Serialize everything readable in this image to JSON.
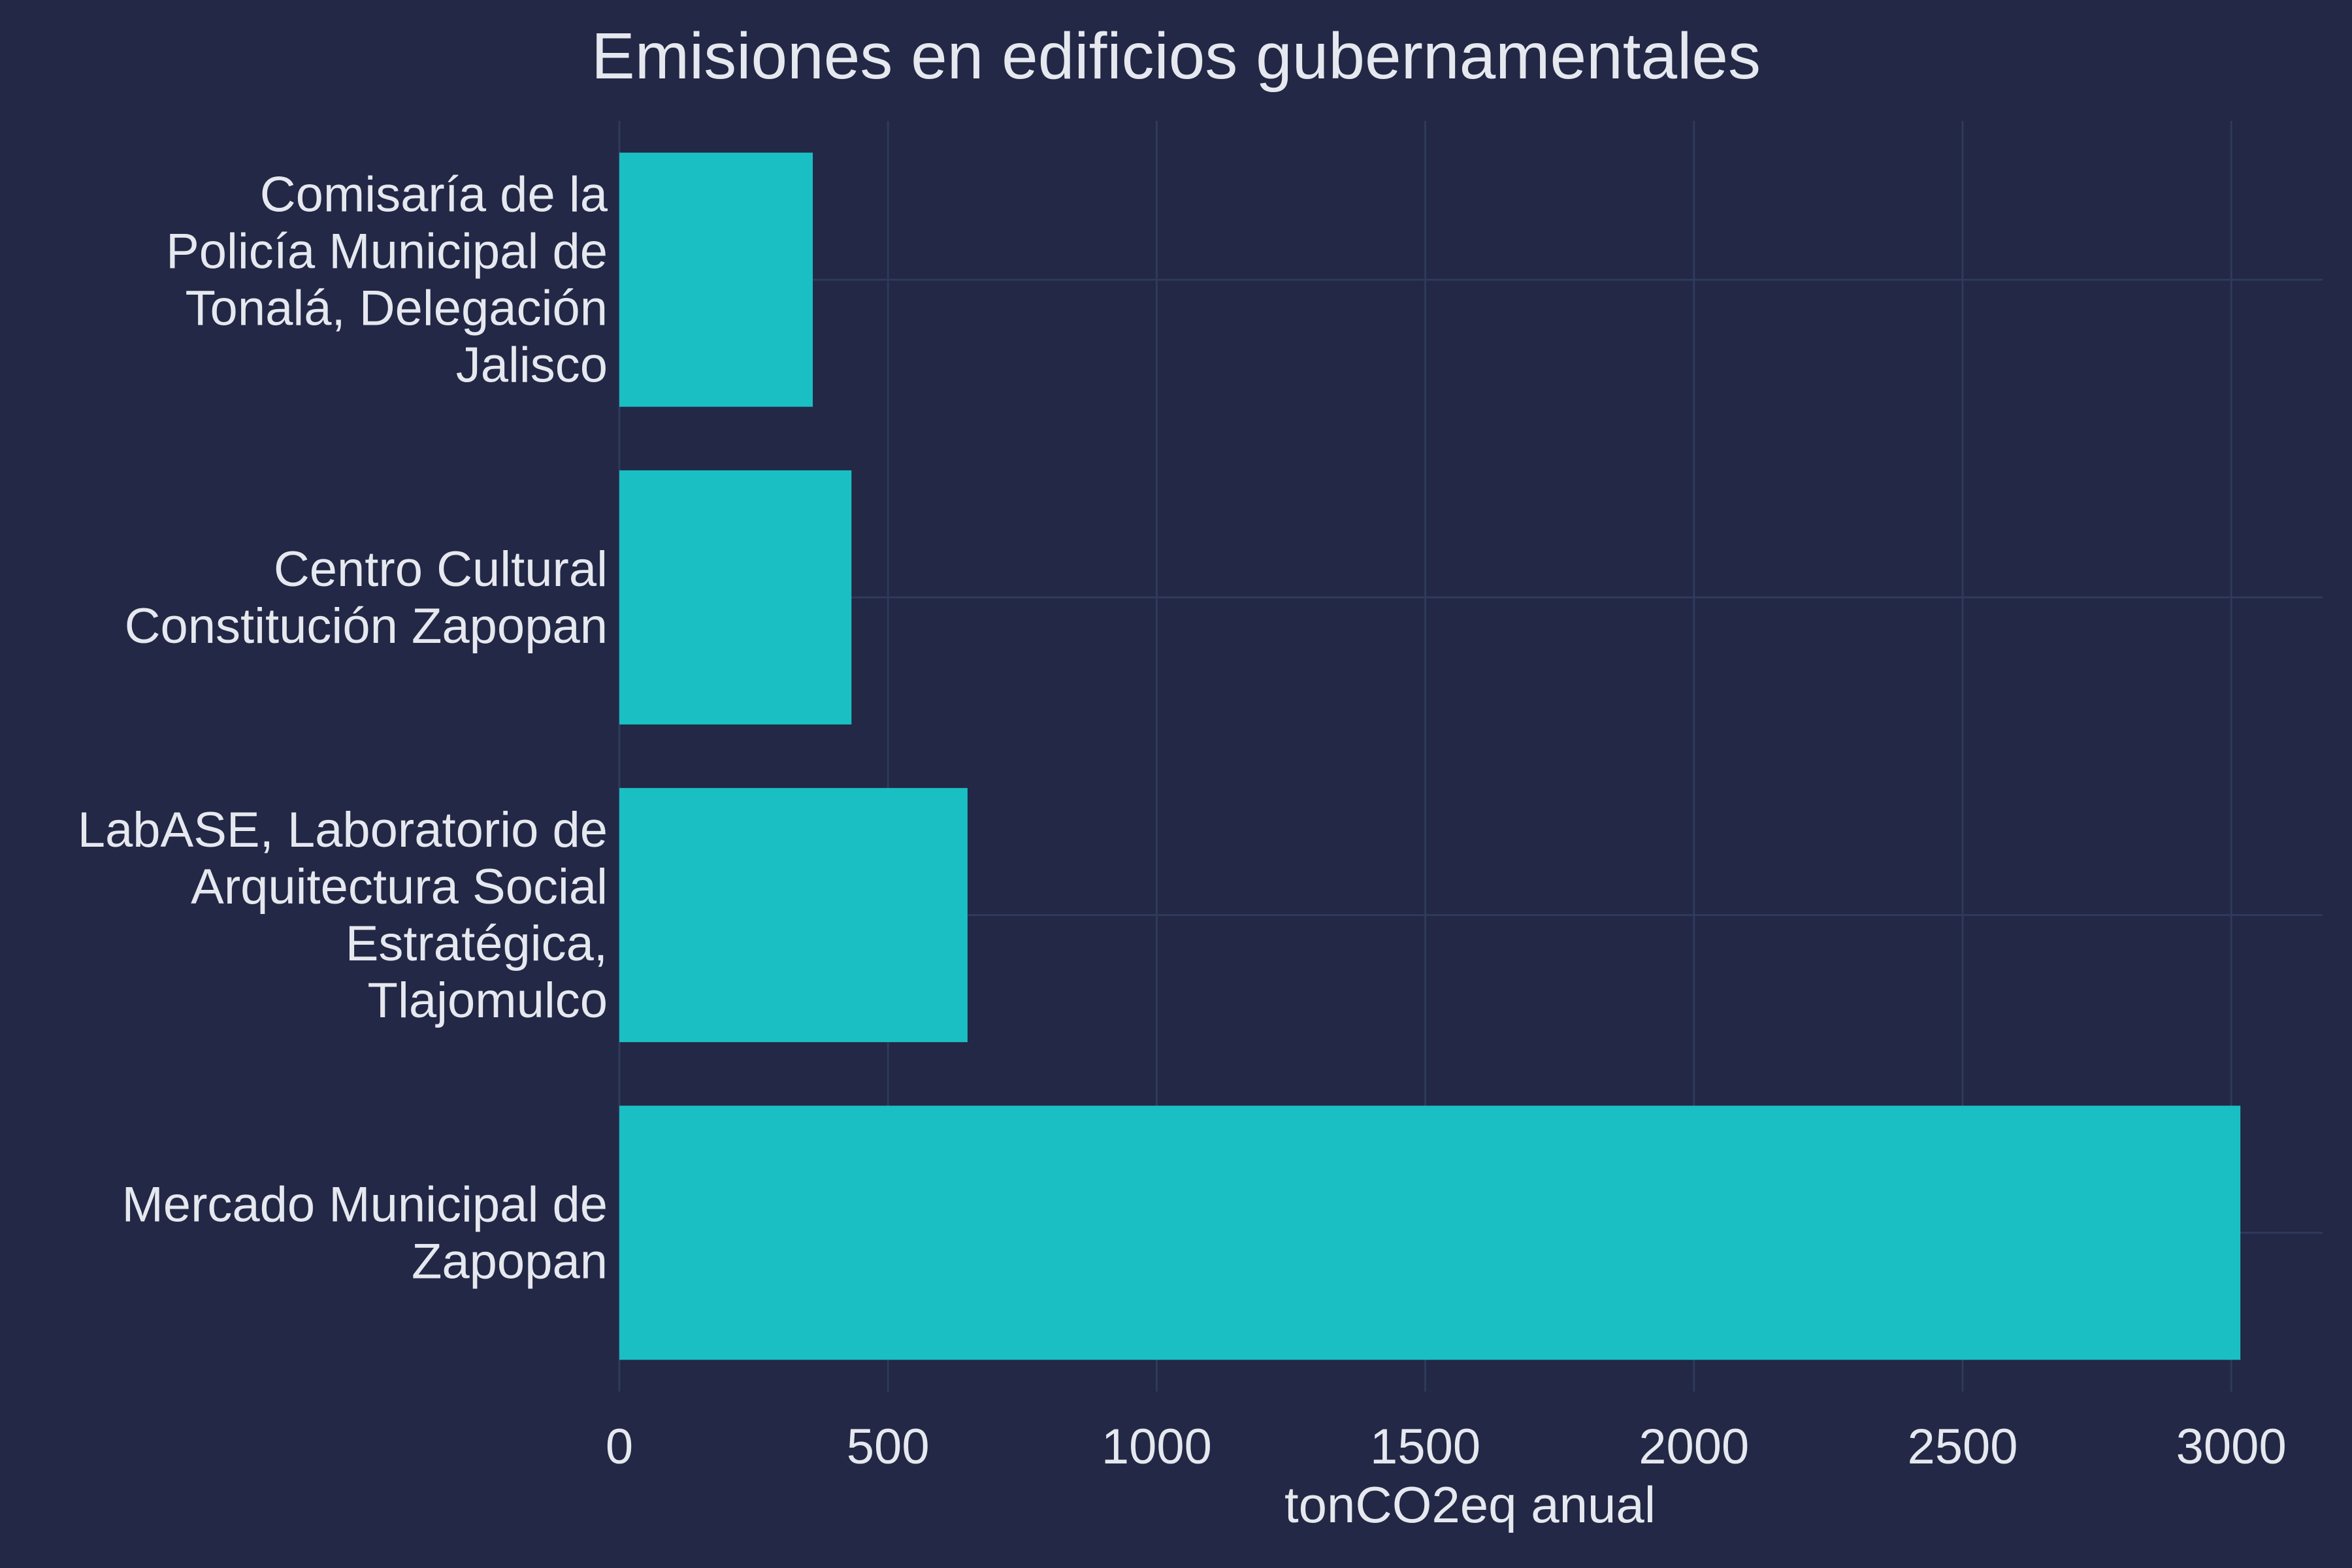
{
  "chart_data": {
    "type": "bar",
    "orientation": "horizontal",
    "title": "Emisiones en edificios gubernamentales",
    "xlabel": "tonCO2eq anual",
    "ylabel": "",
    "categories": [
      "Comisaría de la Policía Municipal de Tonalá, Delegación Jalisco",
      "Centro Cultural Constitución Zapopan",
      "LabASE, Laboratorio de Arquitectura Social Estratégica, Tlajomulco",
      "Mercado Municipal de Zapopan"
    ],
    "category_label_lines": [
      [
        "Comisaría de la",
        "Policía Municipal de",
        "Tonalá, Delegación",
        "Jalisco"
      ],
      [
        "Centro Cultural",
        "Constitución Zapopan"
      ],
      [
        "LabASE, Laboratorio de",
        "Arquitectura Social",
        "Estratégica,",
        "Tlajomulco"
      ],
      [
        "Mercado Municipal de",
        "Zapopan"
      ]
    ],
    "values": [
      360,
      432,
      648,
      3017
    ],
    "xlim": [
      0,
      3170
    ],
    "xticks": [
      0,
      500,
      1000,
      1500,
      2000,
      2500,
      3000
    ],
    "grid": true,
    "legend": "none",
    "colors": {
      "background": "#222845",
      "bar": "#1abfc4",
      "grid": "#2f3a5c",
      "text": "#e6e8ef"
    }
  }
}
